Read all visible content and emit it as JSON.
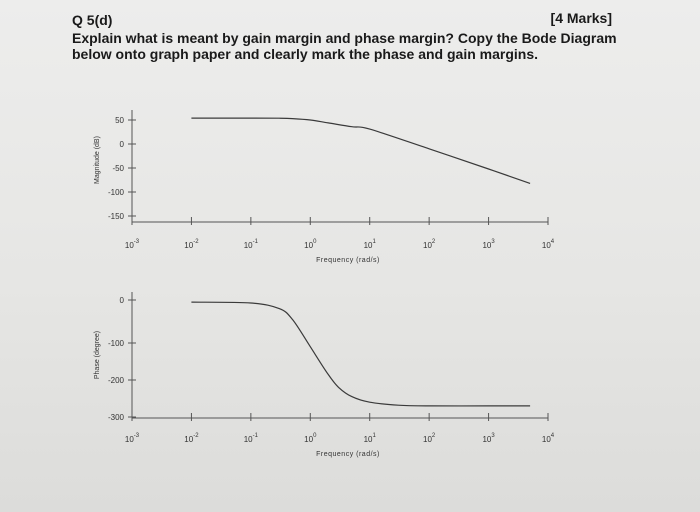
{
  "question": {
    "number": "Q 5(d)",
    "marks": "[4 Marks]",
    "text": "Explain what is meant by gain margin and phase margin? Copy the Bode Diagram below onto graph paper and clearly mark the phase and gain margins."
  },
  "chart_data": [
    {
      "type": "line",
      "title": "",
      "xlabel": "Frequency (rad/s)",
      "ylabel": "Magnitude (dB)",
      "xscale": "log",
      "xlim": [
        0.001,
        10000
      ],
      "ylim": [
        -150,
        60
      ],
      "x_tick_exponents": [
        "-3",
        "-2",
        "-1",
        "0",
        "1",
        "2",
        "3",
        "4"
      ],
      "y_ticks": [
        "50",
        "0",
        "-50",
        "-100",
        "-150"
      ],
      "y_tick_values": [
        50,
        0,
        -50,
        -100,
        -150
      ],
      "grid": false,
      "series": [
        {
          "x": [
            0.01,
            0.1,
            0.3,
            0.5,
            1,
            2,
            5,
            10,
            100,
            1000,
            5000
          ],
          "y": [
            54,
            54,
            53.8,
            53,
            50,
            44,
            36,
            31,
            -10,
            -52,
            -82
          ]
        }
      ]
    },
    {
      "type": "line",
      "title": "",
      "xlabel": "Frequency (rad/s)",
      "ylabel": "Phase (degree)",
      "xscale": "log",
      "xlim": [
        0.001,
        10000
      ],
      "ylim": [
        -300,
        0
      ],
      "x_tick_exponents": [
        "-3",
        "-2",
        "-1",
        "0",
        "1",
        "2",
        "3",
        "4"
      ],
      "y_ticks": [
        "0",
        "-100",
        "-200",
        "-300"
      ],
      "y_tick_values": [
        0,
        -100,
        -200,
        -300
      ],
      "grid": false,
      "series": [
        {
          "x": [
            0.01,
            0.1,
            0.3,
            0.5,
            1,
            2,
            3,
            5,
            10,
            30,
            100,
            1000,
            5000
          ],
          "y": [
            -5,
            -7,
            -20,
            -45,
            -110,
            -185,
            -220,
            -245,
            -260,
            -268,
            -270,
            -270,
            -270
          ]
        }
      ]
    }
  ]
}
